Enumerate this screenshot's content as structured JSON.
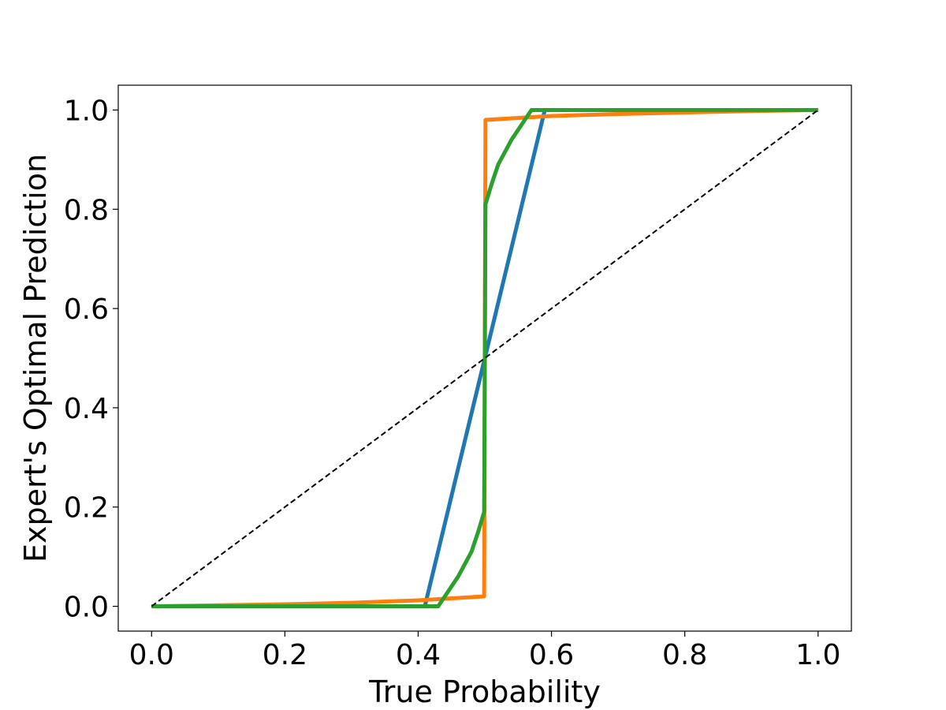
{
  "chart_data": {
    "type": "line",
    "title": "",
    "xlabel": "True Probability",
    "ylabel": "Expert's Optimal Prediction",
    "xlim": [
      -0.05,
      1.05
    ],
    "ylim": [
      -0.05,
      1.05
    ],
    "xticks": [
      0.0,
      0.2,
      0.4,
      0.6,
      0.8,
      1.0
    ],
    "yticks": [
      0.0,
      0.2,
      0.4,
      0.6,
      0.8,
      1.0
    ],
    "xtick_labels": [
      "0.0",
      "0.2",
      "0.4",
      "0.6",
      "0.8",
      "1.0"
    ],
    "ytick_labels": [
      "0.0",
      "0.2",
      "0.4",
      "0.6",
      "0.8",
      "1.0"
    ],
    "grid": false,
    "legend": "none",
    "series": [
      {
        "color": "#1f77b4",
        "style": "solid",
        "x": [
          0.0,
          0.41,
          0.5,
          0.59,
          1.0
        ],
        "y": [
          0.0,
          0.0,
          0.5,
          1.0,
          1.0
        ]
      },
      {
        "color": "#ff7f0e",
        "style": "solid",
        "x": [
          0.0,
          0.1,
          0.2,
          0.3,
          0.4,
          0.45,
          0.499,
          0.5,
          0.501,
          0.55,
          0.6,
          0.7,
          0.8,
          0.9,
          1.0
        ],
        "y": [
          0.0,
          0.002,
          0.004,
          0.007,
          0.012,
          0.016,
          0.02,
          0.5,
          0.98,
          0.984,
          0.988,
          0.992,
          0.995,
          0.998,
          1.0
        ]
      },
      {
        "color": "#2ca02c",
        "style": "solid",
        "x": [
          0.0,
          0.43,
          0.44,
          0.46,
          0.48,
          0.49,
          0.499,
          0.5,
          0.501,
          0.51,
          0.52,
          0.54,
          0.56,
          0.57,
          1.0
        ],
        "y": [
          0.0,
          0.0,
          0.02,
          0.06,
          0.11,
          0.15,
          0.19,
          0.5,
          0.81,
          0.85,
          0.89,
          0.94,
          0.98,
          1.0,
          1.0
        ]
      },
      {
        "color": "#000000",
        "style": "dashed",
        "x": [
          0.0,
          1.0
        ],
        "y": [
          0.0,
          1.0
        ]
      }
    ]
  }
}
